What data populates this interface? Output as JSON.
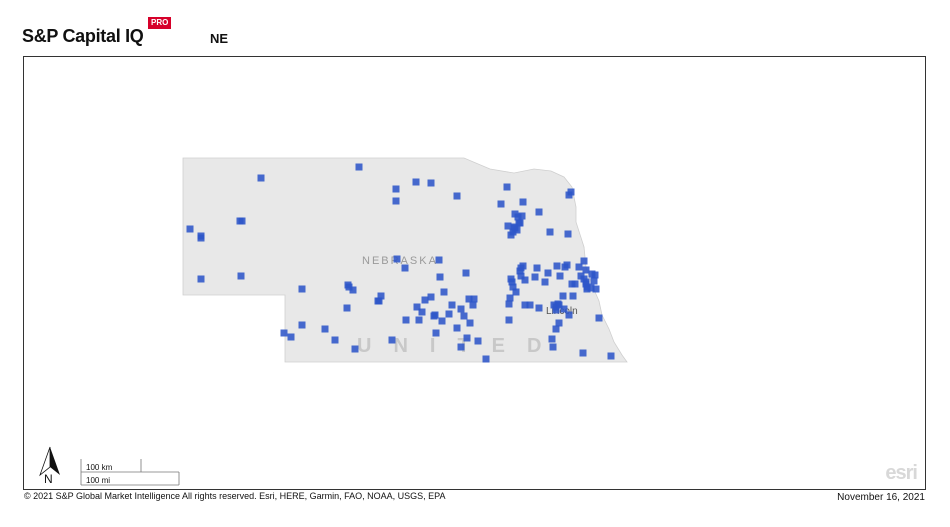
{
  "header": {
    "brand": "S&P Capital IQ",
    "badge": "PRO",
    "region_code": "NE"
  },
  "map": {
    "state_label": "NEBRASKA",
    "country_label": "UNITED",
    "city_label": "Lincoln",
    "state_fill": "#e8e8e8",
    "marker_color": "#2d55c8",
    "marker_icon": "square-marker"
  },
  "north_arrow": {
    "label": "N",
    "icon": "north-arrow-icon"
  },
  "scale": {
    "km_label": "100 km",
    "mi_label": "100 mi"
  },
  "esri_logo": "esri",
  "footer": {
    "copyright": "© 2021 S&P Global Market Intelligence All rights reserved. Esri, HERE, Garmin, FAO, NOAA, USGS, EPA",
    "date": "November 16, 2021"
  }
}
